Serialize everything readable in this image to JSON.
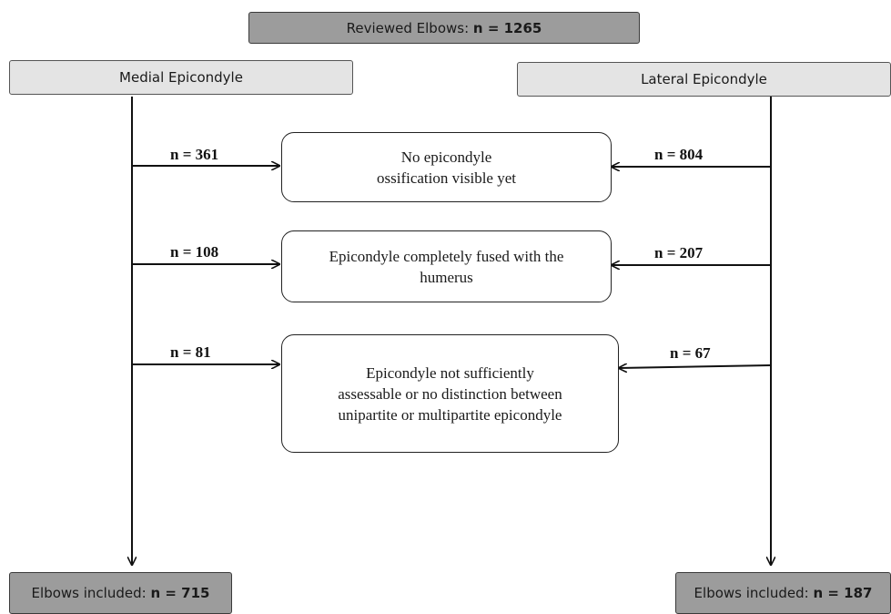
{
  "top": {
    "label": "Reviewed Elbows: ",
    "n": "n = 1265"
  },
  "left_header": "Medial Epicondyle",
  "right_header": "Lateral Epicondyle",
  "exclusions": [
    {
      "text1": "No epicondyle",
      "text2": "ossification visible yet",
      "text3": "",
      "medial_n": "n = 361",
      "lateral_n": "n = 804"
    },
    {
      "text1": "Epicondyle completely fused with the",
      "text2": "humerus",
      "text3": "",
      "medial_n": "n = 108",
      "lateral_n": "n = 207"
    },
    {
      "text1": "Epicondyle not sufficiently",
      "text2": "assessable or no distinction between",
      "text3": "unipartite or multipartite epicondyle",
      "medial_n": "n = 81",
      "lateral_n": "n = 67"
    }
  ],
  "bottom_left": {
    "label": "Elbows included: ",
    "n": "n = 715"
  },
  "bottom_right": {
    "label": "Elbows included: ",
    "n": "n = 187"
  }
}
